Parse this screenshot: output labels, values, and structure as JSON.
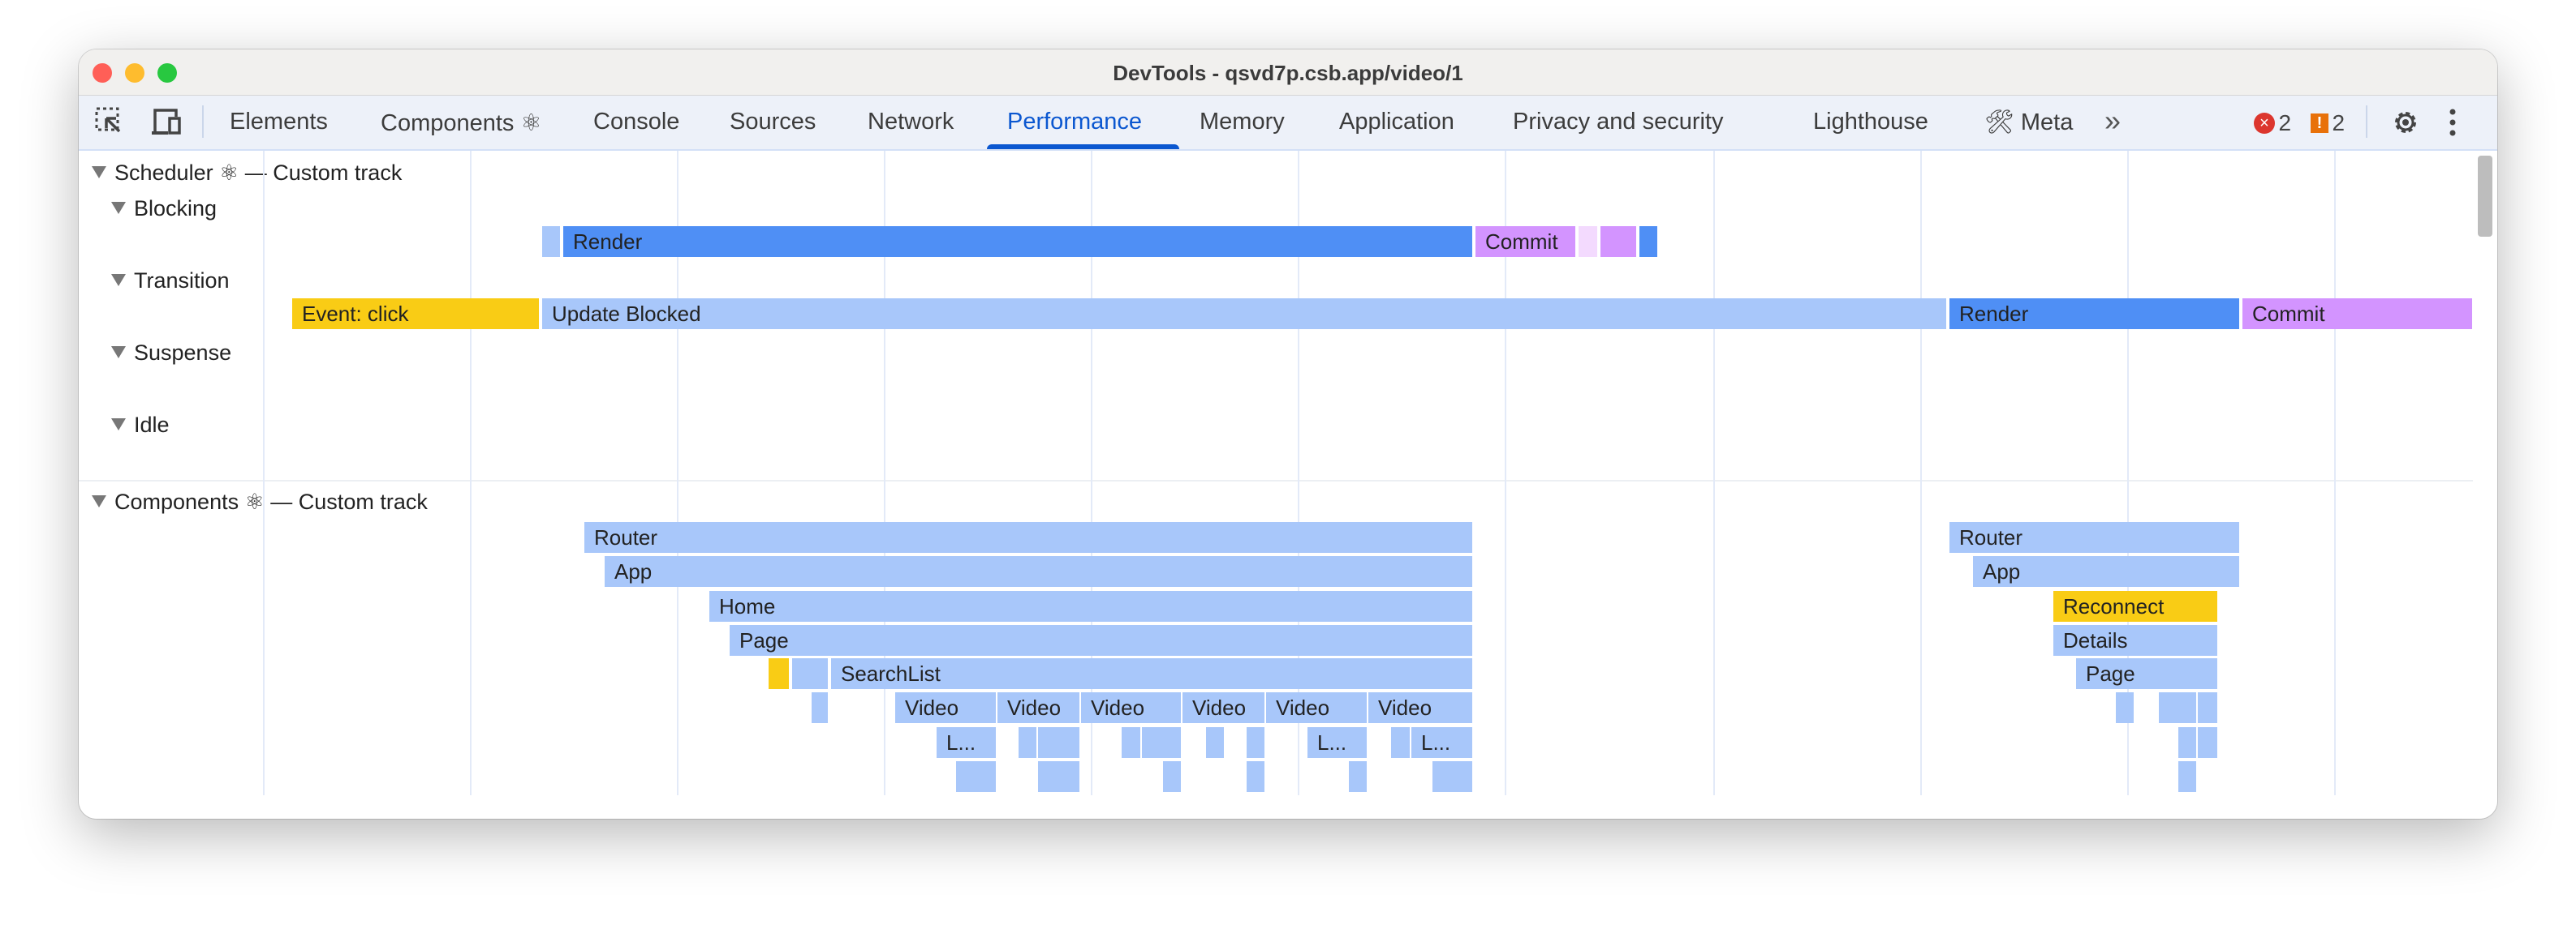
{
  "window": {
    "title": "DevTools - qsvd7p.csb.app/video/1"
  },
  "tabs": [
    {
      "label": "Elements"
    },
    {
      "label": "Components ⚛"
    },
    {
      "label": "Console"
    },
    {
      "label": "Sources"
    },
    {
      "label": "Network"
    },
    {
      "label": "Performance",
      "active": true
    },
    {
      "label": "Memory"
    },
    {
      "label": "Application"
    },
    {
      "label": "Privacy and security"
    },
    {
      "label": "Lighthouse"
    },
    {
      "label": "🛠 Meta"
    }
  ],
  "toolbar": {
    "more_tabs": "»",
    "errors": "2",
    "warnings": "2",
    "icons": [
      "inspect-element-icon",
      "device-toolbar-icon",
      "error-icon",
      "warning-icon",
      "gear-icon",
      "more-vert-icon"
    ]
  },
  "colors": {
    "accent": "#0b57d0",
    "light_blue": "#a8c7fa",
    "blue": "#4f8ff5",
    "yellow": "#f9cc15",
    "purple": "#d394ff",
    "pale_purple": "#f3dafe",
    "error": "#dc362e",
    "warning": "#e8710a"
  },
  "scheduler": {
    "header": "Scheduler ⚛ — Custom track",
    "tracks": [
      "Blocking",
      "Transition",
      "Suspense",
      "Idle"
    ],
    "blocking": {
      "render": "Render",
      "commit": "Commit"
    },
    "transition": {
      "event": "Event: click",
      "update_blocked": "Update Blocked",
      "render": "Render",
      "commit": "Commit"
    }
  },
  "components": {
    "header": "Components ⚛ — Custom track",
    "left": {
      "router": "Router",
      "app": "App",
      "home": "Home",
      "page": "Page",
      "searchlist": "SearchList",
      "video": "Video",
      "truncated": "L..."
    },
    "right": {
      "router": "Router",
      "app": "App",
      "reconnect": "Reconnect",
      "details": "Details",
      "page": "Page"
    }
  }
}
